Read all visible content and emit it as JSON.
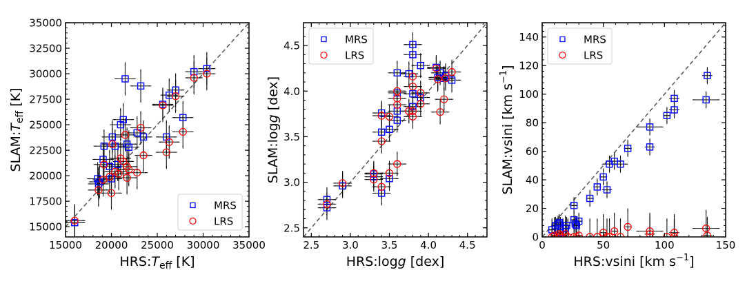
{
  "chart_data": [
    {
      "type": "scatter",
      "xlabel": "HRS:T_eff [K]",
      "ylabel": "SLAM:T_eff [K]",
      "xlabel_parts": {
        "prefix": "HRS:",
        "var": "T",
        "sub": "eff",
        "suffix": " [K]"
      },
      "ylabel_parts": {
        "prefix": "SLAM:",
        "var": "T",
        "sub": "eff",
        "suffix": " [K]"
      },
      "xlim": [
        15000,
        35000
      ],
      "ylim": [
        14000,
        35000
      ],
      "xticks": [
        "15000",
        "20000",
        "25000",
        "30000",
        "35000"
      ],
      "xtick_values": [
        15000,
        20000,
        25000,
        30000,
        35000
      ],
      "yticks": [
        "15000",
        "17500",
        "20000",
        "22500",
        "25000",
        "27500",
        "30000",
        "32500",
        "35000"
      ],
      "ytick_values": [
        15000,
        17500,
        20000,
        22500,
        25000,
        27500,
        30000,
        32500,
        35000
      ],
      "one_to_one_line": true,
      "legend_position": "lower-right",
      "series": [
        {
          "name": "MRS",
          "marker": "square",
          "color": "#0000ff",
          "x": [
            16000,
            21500,
            23200,
            25600,
            26300,
            27000,
            29000,
            30400,
            21300,
            21000,
            20100,
            19200,
            20400,
            21700,
            21900,
            23500,
            22800,
            27800,
            26000,
            19100,
            19800,
            20700,
            18500,
            18700,
            20000,
            18600
          ],
          "y": [
            15400,
            29500,
            28800,
            27000,
            27900,
            28400,
            30200,
            30500,
            25500,
            25000,
            23800,
            22900,
            22900,
            23100,
            22800,
            23800,
            24200,
            25700,
            23800,
            21600,
            20900,
            21100,
            19700,
            19400,
            19700,
            19200
          ],
          "xerr": [
            1000,
            1000,
            1000,
            1000,
            800,
            800,
            800,
            800,
            1000,
            1000,
            1000,
            1000,
            1000,
            1000,
            1000,
            800,
            800,
            1000,
            1000,
            1000,
            1000,
            1000,
            1000,
            1000,
            1000,
            1000
          ],
          "yerr": [
            1500,
            1500,
            1500,
            1500,
            1500,
            1500,
            1500,
            1500,
            1500,
            1500,
            1500,
            1500,
            1500,
            1500,
            1500,
            1500,
            1500,
            1500,
            1500,
            1500,
            1500,
            1500,
            1500,
            1500,
            1500,
            1500
          ]
        },
        {
          "name": "LRS",
          "marker": "circle",
          "color": "#ff0000",
          "x": [
            16000,
            25600,
            27000,
            29000,
            30400,
            23200,
            21500,
            20100,
            23500,
            26300,
            26000,
            27800,
            21000,
            21300,
            19200,
            20400,
            21700,
            21900,
            20800,
            19100,
            19800,
            20000,
            22800,
            18600,
            21700
          ],
          "y": [
            15600,
            26900,
            27800,
            29600,
            30000,
            24700,
            24000,
            23100,
            22000,
            23300,
            22300,
            24300,
            21700,
            21400,
            21100,
            20400,
            20900,
            20600,
            20200,
            19600,
            19900,
            18300,
            20300,
            18600,
            19800
          ],
          "xerr": [
            1000,
            1000,
            800,
            800,
            800,
            1000,
            1000,
            1000,
            800,
            1000,
            1000,
            1000,
            1000,
            1000,
            1000,
            1000,
            1000,
            1000,
            1000,
            1000,
            1000,
            1000,
            1000,
            1000,
            1000
          ],
          "yerr": [
            1500,
            1500,
            1500,
            1500,
            1500,
            1500,
            1500,
            1500,
            1500,
            1500,
            1500,
            1500,
            1500,
            1500,
            1500,
            1500,
            1500,
            1500,
            1500,
            1500,
            1500,
            1500,
            1500,
            1500,
            1500
          ]
        }
      ]
    },
    {
      "type": "scatter",
      "xlabel": "HRS:logg [dex]",
      "ylabel": "SLAM:logg [dex]",
      "xlabel_parts": {
        "prefix": "HRS:log",
        "var": "g",
        "sub": "",
        "suffix": " [dex]"
      },
      "ylabel_parts": {
        "prefix": "SLAM:log",
        "var": "g",
        "sub": "",
        "suffix": " [dex]"
      },
      "xlim": [
        2.4,
        4.75
      ],
      "ylim": [
        2.4,
        4.75
      ],
      "xticks": [
        "2.5",
        "3.0",
        "3.5",
        "4.0",
        "4.5"
      ],
      "xtick_values": [
        2.5,
        3.0,
        3.5,
        4.0,
        4.5
      ],
      "yticks": [
        "2.5",
        "3.0",
        "3.5",
        "4.0",
        "4.5"
      ],
      "ytick_values": [
        2.5,
        3.0,
        3.5,
        4.0,
        4.5
      ],
      "one_to_one_line": true,
      "legend_position": "upper-left",
      "series": [
        {
          "name": "MRS",
          "marker": "square",
          "color": "#0000ff",
          "x": [
            2.7,
            2.7,
            2.9,
            3.3,
            3.3,
            3.4,
            3.5,
            3.4,
            3.4,
            3.5,
            3.6,
            3.6,
            3.6,
            3.6,
            3.75,
            3.8,
            3.8,
            3.8,
            3.8,
            3.9,
            3.9,
            4.1,
            4.12,
            4.15,
            4.2,
            4.22,
            4.3
          ],
          "y": [
            2.81,
            2.72,
            2.96,
            3.09,
            3.06,
            2.88,
            3.04,
            3.55,
            3.76,
            3.58,
            3.68,
            3.78,
            3.98,
            4.2,
            4.19,
            4.51,
            4.4,
            3.97,
            3.83,
            4.28,
            3.93,
            4.26,
            4.15,
            4.2,
            4.14,
            4.17,
            4.12
          ],
          "xerr": [
            0.1,
            0.1,
            0.1,
            0.1,
            0.1,
            0.1,
            0.1,
            0.1,
            0.1,
            0.1,
            0.1,
            0.1,
            0.1,
            0.1,
            0.1,
            0.1,
            0.1,
            0.1,
            0.1,
            0.1,
            0.1,
            0.1,
            0.1,
            0.1,
            0.1,
            0.1,
            0.1
          ],
          "yerr": [
            0.12,
            0.12,
            0.12,
            0.12,
            0.12,
            0.12,
            0.12,
            0.12,
            0.12,
            0.12,
            0.12,
            0.12,
            0.12,
            0.12,
            0.12,
            0.12,
            0.12,
            0.12,
            0.12,
            0.12,
            0.12,
            0.12,
            0.12,
            0.12,
            0.12,
            0.12,
            0.12
          ]
        },
        {
          "name": "LRS",
          "marker": "circle",
          "color": "#ff0000",
          "x": [
            2.7,
            2.9,
            3.3,
            3.3,
            3.4,
            3.5,
            3.6,
            3.4,
            3.4,
            3.5,
            3.6,
            3.6,
            3.6,
            3.75,
            3.8,
            3.8,
            3.8,
            3.8,
            3.9,
            3.9,
            4.1,
            4.12,
            4.15,
            4.2,
            4.22,
            4.3
          ],
          "y": [
            2.76,
            2.99,
            3.1,
            3.03,
            2.95,
            3.1,
            3.2,
            3.45,
            3.73,
            3.72,
            3.85,
            3.92,
            4.0,
            3.78,
            4.16,
            4.05,
            3.78,
            3.72,
            3.98,
            3.86,
            4.25,
            4.13,
            3.77,
            3.91,
            4.14,
            4.21
          ],
          "xerr": [
            0.1,
            0.1,
            0.1,
            0.1,
            0.1,
            0.1,
            0.1,
            0.1,
            0.1,
            0.1,
            0.1,
            0.1,
            0.1,
            0.1,
            0.1,
            0.1,
            0.1,
            0.1,
            0.1,
            0.1,
            0.1,
            0.1,
            0.1,
            0.1,
            0.1,
            0.1
          ],
          "yerr": [
            0.12,
            0.12,
            0.12,
            0.12,
            0.12,
            0.12,
            0.12,
            0.12,
            0.12,
            0.12,
            0.12,
            0.12,
            0.12,
            0.12,
            0.12,
            0.12,
            0.12,
            0.12,
            0.12,
            0.12,
            0.12,
            0.12,
            0.12,
            0.12,
            0.12,
            0.12
          ]
        }
      ]
    },
    {
      "type": "scatter",
      "xlabel": "HRS:vsini [km s^-1]",
      "ylabel": "SLAM:vsini [km s^-1]",
      "xlabel_parts": {
        "prefix": "HRS:vsini [km s",
        "sup": "−1",
        "suffix": "]"
      },
      "ylabel_parts": {
        "prefix": "SLAM:vsini [km s",
        "sup": "−1",
        "suffix": "]"
      },
      "xlim": [
        0,
        150
      ],
      "ylim": [
        0,
        150
      ],
      "xticks": [
        "0",
        "50",
        "100",
        "150"
      ],
      "xtick_values": [
        0,
        50,
        100,
        150
      ],
      "yticks": [
        "0",
        "20",
        "40",
        "60",
        "80",
        "100",
        "120",
        "140"
      ],
      "ytick_values": [
        0,
        20,
        40,
        60,
        80,
        100,
        120,
        140
      ],
      "one_to_one_line": true,
      "legend_position": "upper-left",
      "series": [
        {
          "name": "MRS",
          "marker": "square",
          "color": "#0000ff",
          "x": [
            8,
            11,
            13,
            14,
            15,
            19,
            20,
            26,
            26,
            27,
            28,
            30,
            39,
            45,
            50,
            53,
            55,
            59,
            64,
            70,
            88,
            88,
            102,
            108,
            108,
            135,
            134
          ],
          "y": [
            5,
            8,
            9,
            10,
            3,
            6,
            8,
            22,
            12,
            9,
            8,
            11,
            27,
            35,
            42,
            33,
            51,
            53,
            51,
            62,
            77,
            63,
            85,
            97,
            89,
            113,
            96
          ],
          "xerr": [
            2,
            2,
            2,
            2,
            2,
            2,
            2,
            2,
            2,
            2,
            2,
            2,
            2,
            2,
            2,
            3,
            5,
            5,
            5,
            2,
            10,
            3,
            2,
            3,
            3,
            3,
            10
          ],
          "yerr": [
            4,
            5,
            5,
            5,
            5,
            5,
            5,
            5,
            5,
            5,
            5,
            5,
            5,
            5,
            5,
            5,
            5,
            5,
            5,
            5,
            5,
            5,
            5,
            5,
            5,
            5,
            5
          ]
        },
        {
          "name": "LRS",
          "marker": "circle",
          "color": "#ff0000",
          "x": [
            8,
            10,
            12,
            14,
            15,
            17,
            19,
            21,
            26,
            28,
            30,
            39,
            45,
            50,
            53,
            55,
            59,
            64,
            70,
            88,
            88,
            102,
            108,
            108,
            134,
            135
          ],
          "y": [
            0,
            1,
            0,
            2,
            1,
            0,
            2,
            0,
            0,
            0,
            1,
            0,
            0,
            3,
            0,
            0,
            4,
            0,
            7,
            4,
            2,
            0,
            3,
            0,
            6,
            1
          ],
          "xerr": [
            2,
            2,
            2,
            2,
            2,
            2,
            2,
            2,
            2,
            2,
            2,
            2,
            2,
            2,
            2,
            8,
            2,
            2,
            2,
            10,
            3,
            2,
            3,
            3,
            10,
            3
          ],
          "yerr": [
            12,
            12,
            12,
            12,
            12,
            12,
            12,
            12,
            12,
            12,
            12,
            12,
            12,
            12,
            12,
            12,
            12,
            12,
            12,
            12,
            12,
            12,
            12,
            12,
            12,
            12
          ]
        }
      ]
    }
  ]
}
